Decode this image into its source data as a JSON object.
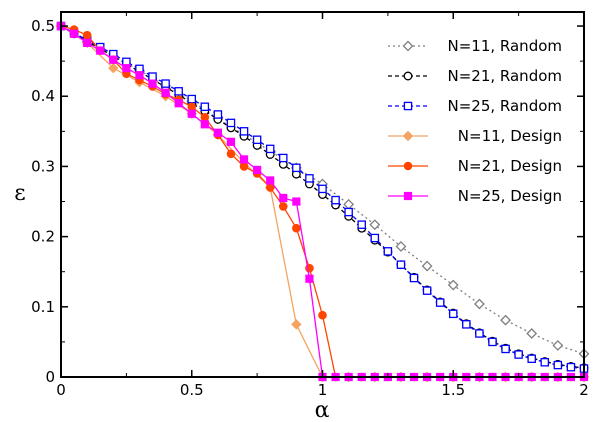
{
  "chart_data": {
    "type": "line",
    "xlabel": "α",
    "ylabel": "ε",
    "xlim": [
      0,
      2
    ],
    "ylim": [
      0,
      0.52
    ],
    "xticks": [
      "0",
      "0.5",
      "1",
      "1.5",
      "2"
    ],
    "yticks": [
      "0",
      "0.1",
      "0.2",
      "0.3",
      "0.4",
      "0.5"
    ],
    "legend_position": "top-right",
    "grid": false,
    "series": [
      {
        "name": "N=11, Random",
        "color": "#7f7f7f",
        "marker": "diamond-open",
        "line": "dotted",
        "x": [
          0,
          0.1,
          0.2,
          0.3,
          0.4,
          0.5,
          0.6,
          0.7,
          0.8,
          0.9,
          1.0,
          1.1,
          1.2,
          1.3,
          1.4,
          1.5,
          1.6,
          1.7,
          1.8,
          1.9,
          2.0
        ],
        "y": [
          0.5,
          0.477,
          0.457,
          0.437,
          0.415,
          0.393,
          0.368,
          0.345,
          0.322,
          0.298,
          0.275,
          0.246,
          0.217,
          0.186,
          0.158,
          0.131,
          0.104,
          0.081,
          0.062,
          0.045,
          0.033
        ]
      },
      {
        "name": "N=21, Random",
        "color": "#000000",
        "marker": "circle-open",
        "line": "dashed",
        "x": [
          0,
          0.05,
          0.1,
          0.15,
          0.2,
          0.25,
          0.3,
          0.35,
          0.4,
          0.45,
          0.5,
          0.55,
          0.6,
          0.65,
          0.7,
          0.75,
          0.8,
          0.85,
          0.9,
          0.95,
          1.0,
          1.05,
          1.1,
          1.15,
          1.2,
          1.25,
          1.3,
          1.35,
          1.4,
          1.45,
          1.5,
          1.55,
          1.6,
          1.65,
          1.7,
          1.75,
          1.8,
          1.85,
          1.9,
          1.95,
          2.0
        ],
        "y": [
          0.5,
          0.489,
          0.478,
          0.468,
          0.457,
          0.446,
          0.435,
          0.424,
          0.413,
          0.402,
          0.39,
          0.379,
          0.367,
          0.355,
          0.343,
          0.33,
          0.317,
          0.303,
          0.289,
          0.275,
          0.26,
          0.245,
          0.229,
          0.212,
          0.195,
          0.178,
          0.16,
          0.142,
          0.124,
          0.107,
          0.091,
          0.076,
          0.063,
          0.051,
          0.041,
          0.033,
          0.027,
          0.022,
          0.018,
          0.015,
          0.013
        ]
      },
      {
        "name": "N=25, Random",
        "color": "#0000ff",
        "marker": "square-open",
        "line": "dashed",
        "x": [
          0,
          0.05,
          0.1,
          0.15,
          0.2,
          0.25,
          0.3,
          0.35,
          0.4,
          0.45,
          0.5,
          0.55,
          0.6,
          0.65,
          0.7,
          0.75,
          0.8,
          0.85,
          0.9,
          0.95,
          1.0,
          1.05,
          1.1,
          1.15,
          1.2,
          1.25,
          1.3,
          1.35,
          1.4,
          1.45,
          1.5,
          1.55,
          1.6,
          1.65,
          1.7,
          1.75,
          1.8,
          1.85,
          1.9,
          1.95,
          2.0
        ],
        "y": [
          0.5,
          0.49,
          0.48,
          0.47,
          0.46,
          0.449,
          0.439,
          0.428,
          0.418,
          0.407,
          0.396,
          0.385,
          0.374,
          0.362,
          0.35,
          0.338,
          0.325,
          0.312,
          0.298,
          0.283,
          0.268,
          0.252,
          0.235,
          0.217,
          0.198,
          0.179,
          0.16,
          0.141,
          0.123,
          0.106,
          0.09,
          0.075,
          0.062,
          0.05,
          0.04,
          0.032,
          0.026,
          0.021,
          0.017,
          0.014,
          0.012
        ]
      },
      {
        "name": "N=11, Design",
        "color": "#f4a460",
        "marker": "diamond-filled",
        "line": "solid",
        "x": [
          0,
          0.1,
          0.2,
          0.3,
          0.4,
          0.5,
          0.6,
          0.7,
          0.8,
          0.9,
          1.0,
          1.1,
          1.2,
          1.3,
          1.4,
          1.5,
          1.6,
          1.7,
          1.8,
          1.9,
          2.0
        ],
        "y": [
          0.5,
          0.476,
          0.44,
          0.42,
          0.4,
          0.375,
          0.345,
          0.305,
          0.27,
          0.075,
          0,
          0,
          0,
          0,
          0,
          0,
          0,
          0,
          0,
          0,
          0
        ]
      },
      {
        "name": "N=21, Design",
        "color": "#ff4500",
        "marker": "circle-filled",
        "line": "solid",
        "x": [
          0,
          0.05,
          0.1,
          0.15,
          0.2,
          0.25,
          0.3,
          0.35,
          0.4,
          0.45,
          0.5,
          0.55,
          0.6,
          0.65,
          0.7,
          0.75,
          0.8,
          0.85,
          0.9,
          0.95,
          1.0,
          1.05,
          1.1,
          1.15,
          1.2,
          1.25,
          1.3,
          1.35,
          1.4,
          1.45,
          1.5,
          1.55,
          1.6,
          1.65,
          1.7,
          1.75,
          1.8,
          1.85,
          1.9,
          1.95,
          2.0
        ],
        "y": [
          0.5,
          0.495,
          0.487,
          0.465,
          0.452,
          0.432,
          0.423,
          0.414,
          0.403,
          0.395,
          0.385,
          0.37,
          0.345,
          0.318,
          0.3,
          0.29,
          0.27,
          0.243,
          0.212,
          0.155,
          0.088,
          0,
          0,
          0,
          0,
          0,
          0,
          0,
          0,
          0,
          0,
          0,
          0,
          0,
          0,
          0,
          0,
          0,
          0,
          0,
          0
        ]
      },
      {
        "name": "N=25, Design",
        "color": "#ff00ff",
        "marker": "square-filled",
        "line": "solid",
        "x": [
          0,
          0.05,
          0.1,
          0.15,
          0.2,
          0.25,
          0.3,
          0.35,
          0.4,
          0.45,
          0.5,
          0.55,
          0.6,
          0.65,
          0.7,
          0.75,
          0.8,
          0.85,
          0.9,
          0.95,
          1.0,
          1.05,
          1.1,
          1.15,
          1.2,
          1.25,
          1.3,
          1.35,
          1.4,
          1.45,
          1.5,
          1.55,
          1.6,
          1.65,
          1.7,
          1.75,
          1.8,
          1.85,
          1.9,
          1.95,
          2.0
        ],
        "y": [
          0.5,
          0.489,
          0.476,
          0.465,
          0.452,
          0.44,
          0.43,
          0.418,
          0.405,
          0.39,
          0.375,
          0.36,
          0.348,
          0.335,
          0.31,
          0.295,
          0.28,
          0.255,
          0.25,
          0.14,
          0,
          0,
          0,
          0,
          0,
          0,
          0,
          0,
          0,
          0,
          0,
          0,
          0,
          0,
          0,
          0,
          0,
          0,
          0,
          0,
          0
        ]
      }
    ]
  }
}
